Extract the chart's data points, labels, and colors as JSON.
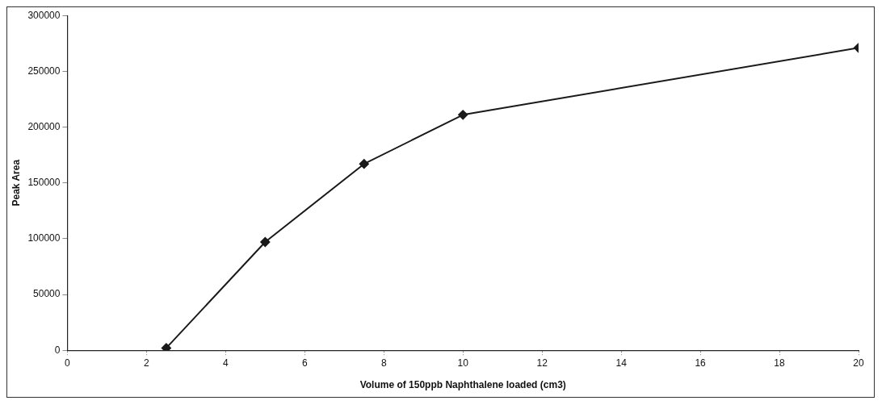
{
  "chart_data": {
    "type": "line",
    "xlabel": "Volume of 150ppb Naphthalene loaded (cm3)",
    "ylabel": "Peak Area",
    "x": [
      2.5,
      5,
      7.5,
      10,
      20
    ],
    "series": [
      {
        "color": "#1a1a1a",
        "values": [
          2000,
          97000,
          167000,
          211000,
          271000
        ]
      }
    ],
    "xlim": [
      0,
      20
    ],
    "xticks": [
      0,
      2,
      4,
      6,
      8,
      10,
      12,
      14,
      16,
      18,
      20
    ],
    "ylim": [
      0,
      300000
    ],
    "yticks": [
      0,
      50000,
      100000,
      150000,
      200000,
      250000,
      300000
    ],
    "grid": false,
    "legend": false,
    "marker": "diamond",
    "line_style": "solid"
  }
}
